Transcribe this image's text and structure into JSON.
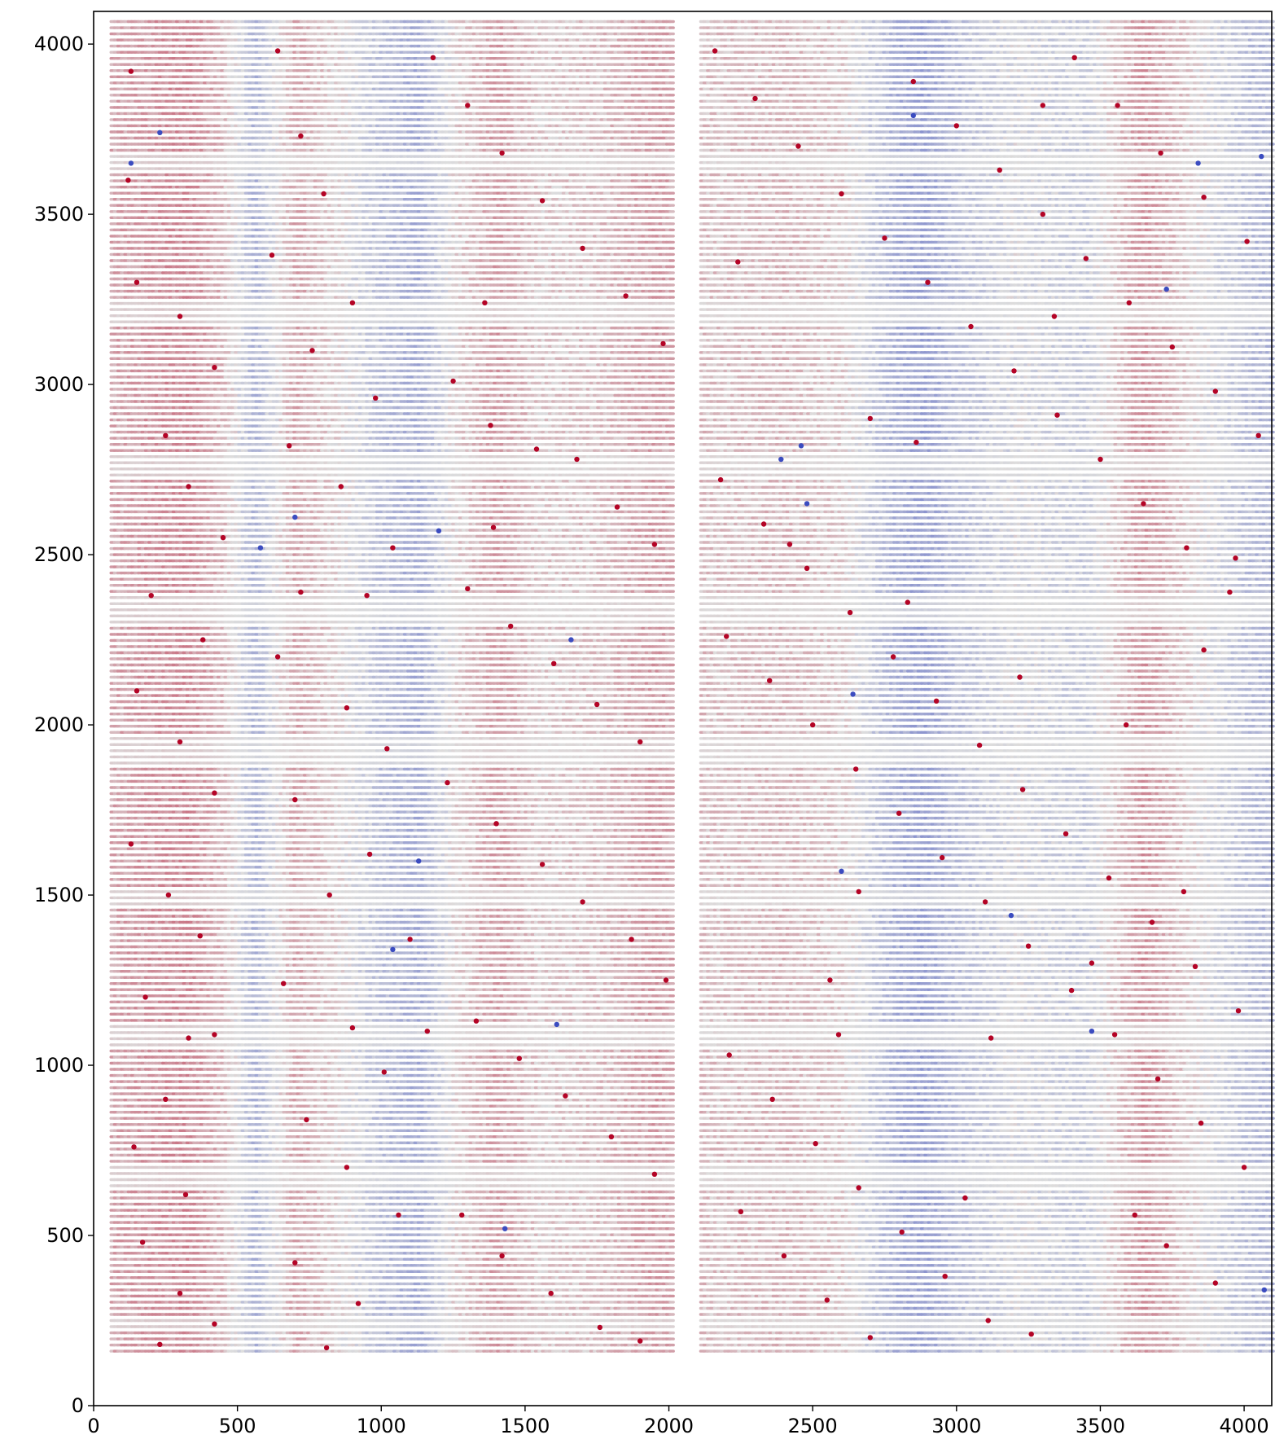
{
  "chart_data": {
    "type": "scatter",
    "title": "",
    "xlabel": "",
    "ylabel": "",
    "xlim": [
      0,
      4096
    ],
    "ylim": [
      0,
      4096
    ],
    "x_ticks": [
      0,
      500,
      1000,
      1500,
      2000,
      2500,
      3000,
      3500,
      4000
    ],
    "x_tick_labels": [
      "0",
      "500",
      "1000",
      "1500",
      "2000",
      "2500",
      "3000",
      "3500",
      "4000"
    ],
    "y_ticks": [
      0,
      500,
      1000,
      1500,
      2000,
      2500,
      3000,
      3500,
      4000
    ],
    "y_tick_labels": [
      "0",
      "500",
      "1000",
      "1500",
      "2000",
      "2500",
      "3000",
      "3500",
      "4000"
    ],
    "colormap": "coolwarm",
    "colors": {
      "low": "#3b4cc0",
      "mid": "#dddddd",
      "high": "#b40426",
      "background": "#ffffff",
      "axis": "#000000"
    },
    "grid": false,
    "legend": "none",
    "regions": [
      {
        "name": "left block",
        "x": [
          60,
          2010
        ],
        "y": [
          160,
          4080
        ]
      },
      {
        "name": "right block",
        "x": [
          2110,
          4096
        ],
        "y": [
          160,
          4080
        ]
      }
    ],
    "row_spacing": 18,
    "column_profile": [
      {
        "x": 60,
        "value": 0.62
      },
      {
        "x": 200,
        "value": 0.66
      },
      {
        "x": 330,
        "value": 0.68
      },
      {
        "x": 450,
        "value": 0.58
      },
      {
        "x": 560,
        "value": 0.36
      },
      {
        "x": 700,
        "value": 0.62
      },
      {
        "x": 880,
        "value": 0.5
      },
      {
        "x": 1000,
        "value": 0.4
      },
      {
        "x": 1130,
        "value": 0.34
      },
      {
        "x": 1250,
        "value": 0.52
      },
      {
        "x": 1400,
        "value": 0.64
      },
      {
        "x": 1550,
        "value": 0.54
      },
      {
        "x": 1750,
        "value": 0.56
      },
      {
        "x": 1950,
        "value": 0.64
      },
      {
        "x": 2150,
        "value": 0.56
      },
      {
        "x": 2400,
        "value": 0.58
      },
      {
        "x": 2600,
        "value": 0.54
      },
      {
        "x": 2800,
        "value": 0.34
      },
      {
        "x": 2880,
        "value": 0.3
      },
      {
        "x": 3000,
        "value": 0.4
      },
      {
        "x": 3200,
        "value": 0.48
      },
      {
        "x": 3450,
        "value": 0.44
      },
      {
        "x": 3650,
        "value": 0.66
      },
      {
        "x": 3850,
        "value": 0.5
      },
      {
        "x": 4050,
        "value": 0.38
      }
    ],
    "grey_bands_y": [
      [
        220,
        260
      ],
      [
        640,
        700
      ],
      [
        1060,
        1120
      ],
      [
        1470,
        1520
      ],
      [
        1880,
        1960
      ],
      [
        2300,
        2380
      ],
      [
        2720,
        2800
      ],
      [
        3180,
        3250
      ],
      [
        3620,
        3680
      ]
    ],
    "outlier_points": [
      [
        130,
        3920
      ],
      [
        120,
        3600
      ],
      [
        150,
        3300
      ],
      [
        300,
        3200
      ],
      [
        420,
        3050
      ],
      [
        250,
        2850
      ],
      [
        330,
        2700
      ],
      [
        450,
        2550
      ],
      [
        200,
        2380
      ],
      [
        380,
        2250
      ],
      [
        150,
        2100
      ],
      [
        300,
        1950
      ],
      [
        420,
        1800
      ],
      [
        130,
        1650
      ],
      [
        260,
        1500
      ],
      [
        370,
        1380
      ],
      [
        180,
        1200
      ],
      [
        330,
        1080
      ],
      [
        420,
        1090
      ],
      [
        250,
        900
      ],
      [
        140,
        760
      ],
      [
        320,
        620
      ],
      [
        170,
        480
      ],
      [
        300,
        330
      ],
      [
        420,
        240
      ],
      [
        230,
        180
      ],
      [
        640,
        3980
      ],
      [
        720,
        3730
      ],
      [
        800,
        3560
      ],
      [
        620,
        3380
      ],
      [
        900,
        3240
      ],
      [
        760,
        3100
      ],
      [
        980,
        2960
      ],
      [
        680,
        2820
      ],
      [
        860,
        2700
      ],
      [
        1040,
        2520
      ],
      [
        720,
        2390
      ],
      [
        950,
        2380
      ],
      [
        640,
        2200
      ],
      [
        880,
        2050
      ],
      [
        1020,
        1930
      ],
      [
        700,
        1780
      ],
      [
        960,
        1620
      ],
      [
        820,
        1500
      ],
      [
        1100,
        1370
      ],
      [
        660,
        1240
      ],
      [
        900,
        1110
      ],
      [
        1010,
        980
      ],
      [
        740,
        840
      ],
      [
        880,
        700
      ],
      [
        1060,
        560
      ],
      [
        700,
        420
      ],
      [
        920,
        300
      ],
      [
        810,
        170
      ],
      [
        1180,
        3960
      ],
      [
        1300,
        3820
      ],
      [
        1420,
        3680
      ],
      [
        1560,
        3540
      ],
      [
        1700,
        3400
      ],
      [
        1850,
        3260
      ],
      [
        1980,
        3120
      ],
      [
        1250,
        3010
      ],
      [
        1380,
        2880
      ],
      [
        1540,
        2810
      ],
      [
        1680,
        2780
      ],
      [
        1820,
        2640
      ],
      [
        1950,
        2530
      ],
      [
        1300,
        2400
      ],
      [
        1450,
        2290
      ],
      [
        1600,
        2180
      ],
      [
        1750,
        2060
      ],
      [
        1900,
        1950
      ],
      [
        1230,
        1830
      ],
      [
        1400,
        1710
      ],
      [
        1560,
        1590
      ],
      [
        1700,
        1480
      ],
      [
        1870,
        1370
      ],
      [
        1990,
        1250
      ],
      [
        1330,
        1130
      ],
      [
        1480,
        1020
      ],
      [
        1640,
        910
      ],
      [
        1800,
        790
      ],
      [
        1950,
        680
      ],
      [
        1280,
        560
      ],
      [
        1420,
        440
      ],
      [
        1590,
        330
      ],
      [
        1760,
        230
      ],
      [
        1900,
        190
      ],
      [
        1160,
        1100
      ],
      [
        1390,
        2580
      ],
      [
        1360,
        3240
      ],
      [
        2160,
        3980
      ],
      [
        2300,
        3840
      ],
      [
        2450,
        3700
      ],
      [
        2600,
        3560
      ],
      [
        2750,
        3430
      ],
      [
        2900,
        3300
      ],
      [
        3050,
        3170
      ],
      [
        3200,
        3040
      ],
      [
        3350,
        2910
      ],
      [
        3500,
        2780
      ],
      [
        3650,
        2650
      ],
      [
        3800,
        2520
      ],
      [
        3950,
        2390
      ],
      [
        2200,
        2260
      ],
      [
        2350,
        2130
      ],
      [
        2500,
        2000
      ],
      [
        2650,
        1870
      ],
      [
        2800,
        1740
      ],
      [
        2950,
        1610
      ],
      [
        3100,
        1480
      ],
      [
        3250,
        1350
      ],
      [
        3400,
        1220
      ],
      [
        3550,
        1090
      ],
      [
        3700,
        960
      ],
      [
        3850,
        830
      ],
      [
        4000,
        700
      ],
      [
        2250,
        570
      ],
      [
        2400,
        440
      ],
      [
        2550,
        310
      ],
      [
        2700,
        200
      ],
      [
        2850,
        3890
      ],
      [
        3000,
        3760
      ],
      [
        3150,
        3630
      ],
      [
        3300,
        3500
      ],
      [
        3450,
        3370
      ],
      [
        3600,
        3240
      ],
      [
        3750,
        3110
      ],
      [
        3900,
        2980
      ],
      [
        4050,
        2850
      ],
      [
        2180,
        2720
      ],
      [
        2330,
        2590
      ],
      [
        2480,
        2460
      ],
      [
        2630,
        2330
      ],
      [
        2780,
        2200
      ],
      [
        2930,
        2070
      ],
      [
        3080,
        1940
      ],
      [
        3230,
        1810
      ],
      [
        3380,
        1680
      ],
      [
        3530,
        1550
      ],
      [
        3680,
        1420
      ],
      [
        3830,
        1290
      ],
      [
        3980,
        1160
      ],
      [
        2210,
        1030
      ],
      [
        2360,
        900
      ],
      [
        2510,
        770
      ],
      [
        2660,
        640
      ],
      [
        2810,
        510
      ],
      [
        2960,
        380
      ],
      [
        3110,
        250
      ],
      [
        3260,
        210
      ],
      [
        3410,
        3960
      ],
      [
        3560,
        3820
      ],
      [
        3710,
        3680
      ],
      [
        3860,
        3550
      ],
      [
        4010,
        3420
      ],
      [
        2860,
        2830
      ],
      [
        2830,
        2360
      ],
      [
        3340,
        3200
      ],
      [
        3120,
        1080
      ],
      [
        3790,
        1510
      ],
      [
        3970,
        2490
      ],
      [
        2660,
        1510
      ],
      [
        3300,
        3820
      ],
      [
        2590,
        1090
      ],
      [
        3220,
        2140
      ],
      [
        3470,
        1300
      ],
      [
        3620,
        560
      ],
      [
        3900,
        360
      ],
      [
        2700,
        2900
      ],
      [
        2420,
        2530
      ],
      [
        3030,
        610
      ],
      [
        3590,
        2000
      ],
      [
        2240,
        3360
      ],
      [
        3860,
        2220
      ],
      [
        3730,
        470
      ],
      [
        2560,
        1250
      ]
    ],
    "blue_points": [
      [
        230,
        3740
      ],
      [
        130,
        3650
      ],
      [
        580,
        2520
      ],
      [
        1200,
        2570
      ],
      [
        1040,
        1340
      ],
      [
        1430,
        520
      ],
      [
        1660,
        2250
      ],
      [
        2390,
        2780
      ],
      [
        2460,
        2820
      ],
      [
        2600,
        1570
      ],
      [
        2640,
        2090
      ],
      [
        2850,
        3790
      ],
      [
        3190,
        1440
      ],
      [
        3470,
        1100
      ],
      [
        3730,
        3280
      ],
      [
        3840,
        3650
      ],
      [
        4060,
        3670
      ],
      [
        1130,
        1600
      ],
      [
        700,
        2610
      ],
      [
        1610,
        1120
      ],
      [
        4070,
        340
      ],
      [
        2480,
        2650
      ]
    ]
  }
}
